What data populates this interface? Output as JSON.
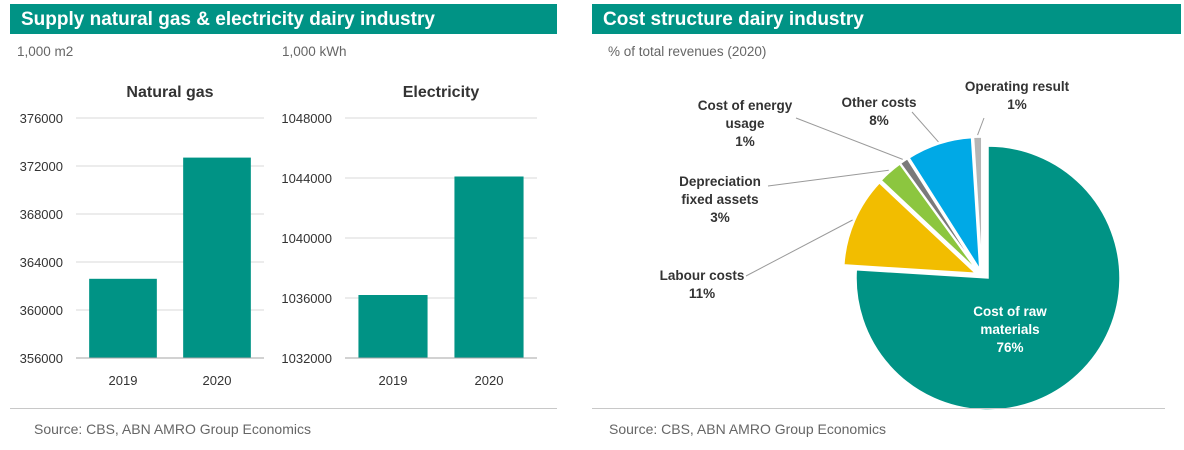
{
  "left_panel": {
    "title": "Supply natural gas & electricity dairy industry",
    "source": "Source: CBS, ABN AMRO Group Economics"
  },
  "right_panel": {
    "title": "Cost structure dairy industry",
    "source": "Source: CBS, ABN AMRO Group Economics"
  },
  "chart_data": [
    {
      "type": "bar",
      "unit_label": "1,000 m2",
      "title": "Natural gas",
      "categories": [
        "2019",
        "2020"
      ],
      "values": [
        362600,
        372700
      ],
      "ylim": [
        356000,
        376000
      ],
      "yticks": [
        "356000",
        "360000",
        "364000",
        "368000",
        "372000",
        "376000"
      ],
      "color": "#009385",
      "grid": true
    },
    {
      "type": "bar",
      "unit_label": "1,000 kWh",
      "title": "Electricity",
      "categories": [
        "2019",
        "2020"
      ],
      "values": [
        1036200,
        1044100
      ],
      "ylim": [
        1032000,
        1048000
      ],
      "yticks": [
        "1032000",
        "1036000",
        "1040000",
        "1044000",
        "1048000"
      ],
      "color": "#009385",
      "grid": true
    },
    {
      "type": "pie",
      "subtitle": "% of total revenues (2020)",
      "slices": [
        {
          "lines": [
            "Cost of raw",
            "materials",
            "76%"
          ],
          "value": 76,
          "color": "#009385"
        },
        {
          "lines": [
            "Labour costs",
            "11%"
          ],
          "value": 11,
          "color": "#f2bd00"
        },
        {
          "lines": [
            "Depreciation",
            "fixed assets",
            "3%"
          ],
          "value": 3,
          "color": "#8cc63f"
        },
        {
          "lines": [
            "Cost of energy",
            "usage",
            "1%"
          ],
          "value": 1,
          "color": "#7a7a7a"
        },
        {
          "lines": [
            "Other costs",
            "8%"
          ],
          "value": 8,
          "color": "#00a9e6"
        },
        {
          "lines": [
            "Operating result",
            "1%"
          ],
          "value": 1,
          "color": "#b5b5b5"
        }
      ]
    }
  ]
}
